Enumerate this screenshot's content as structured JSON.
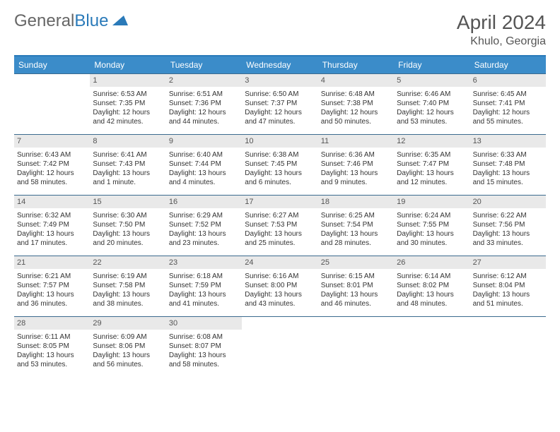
{
  "logo": {
    "textGray": "General",
    "textBlue": "Blue"
  },
  "title": "April 2024",
  "location": "Khulo, Georgia",
  "colors": {
    "headerBar": "#3b8cc9",
    "accent": "#2a7ab9",
    "rowBorder": "#3b6a8e",
    "daynumBg": "#e9e9e9",
    "text": "#333333",
    "muted": "#555555",
    "background": "#ffffff"
  },
  "layout": {
    "pageWidth": 792,
    "pageHeight": 612,
    "columns": 7,
    "dayhead_fontsize": 12,
    "cell_fontsize": 10,
    "title_fontsize": 28,
    "location_fontsize": 16
  },
  "weekdays": [
    "Sunday",
    "Monday",
    "Tuesday",
    "Wednesday",
    "Thursday",
    "Friday",
    "Saturday"
  ],
  "startOffset": 1,
  "days": [
    {
      "n": 1,
      "sunrise": "6:53 AM",
      "sunset": "7:35 PM",
      "daylight": "12 hours and 42 minutes."
    },
    {
      "n": 2,
      "sunrise": "6:51 AM",
      "sunset": "7:36 PM",
      "daylight": "12 hours and 44 minutes."
    },
    {
      "n": 3,
      "sunrise": "6:50 AM",
      "sunset": "7:37 PM",
      "daylight": "12 hours and 47 minutes."
    },
    {
      "n": 4,
      "sunrise": "6:48 AM",
      "sunset": "7:38 PM",
      "daylight": "12 hours and 50 minutes."
    },
    {
      "n": 5,
      "sunrise": "6:46 AM",
      "sunset": "7:40 PM",
      "daylight": "12 hours and 53 minutes."
    },
    {
      "n": 6,
      "sunrise": "6:45 AM",
      "sunset": "7:41 PM",
      "daylight": "12 hours and 55 minutes."
    },
    {
      "n": 7,
      "sunrise": "6:43 AM",
      "sunset": "7:42 PM",
      "daylight": "12 hours and 58 minutes."
    },
    {
      "n": 8,
      "sunrise": "6:41 AM",
      "sunset": "7:43 PM",
      "daylight": "13 hours and 1 minute."
    },
    {
      "n": 9,
      "sunrise": "6:40 AM",
      "sunset": "7:44 PM",
      "daylight": "13 hours and 4 minutes."
    },
    {
      "n": 10,
      "sunrise": "6:38 AM",
      "sunset": "7:45 PM",
      "daylight": "13 hours and 6 minutes."
    },
    {
      "n": 11,
      "sunrise": "6:36 AM",
      "sunset": "7:46 PM",
      "daylight": "13 hours and 9 minutes."
    },
    {
      "n": 12,
      "sunrise": "6:35 AM",
      "sunset": "7:47 PM",
      "daylight": "13 hours and 12 minutes."
    },
    {
      "n": 13,
      "sunrise": "6:33 AM",
      "sunset": "7:48 PM",
      "daylight": "13 hours and 15 minutes."
    },
    {
      "n": 14,
      "sunrise": "6:32 AM",
      "sunset": "7:49 PM",
      "daylight": "13 hours and 17 minutes."
    },
    {
      "n": 15,
      "sunrise": "6:30 AM",
      "sunset": "7:50 PM",
      "daylight": "13 hours and 20 minutes."
    },
    {
      "n": 16,
      "sunrise": "6:29 AM",
      "sunset": "7:52 PM",
      "daylight": "13 hours and 23 minutes."
    },
    {
      "n": 17,
      "sunrise": "6:27 AM",
      "sunset": "7:53 PM",
      "daylight": "13 hours and 25 minutes."
    },
    {
      "n": 18,
      "sunrise": "6:25 AM",
      "sunset": "7:54 PM",
      "daylight": "13 hours and 28 minutes."
    },
    {
      "n": 19,
      "sunrise": "6:24 AM",
      "sunset": "7:55 PM",
      "daylight": "13 hours and 30 minutes."
    },
    {
      "n": 20,
      "sunrise": "6:22 AM",
      "sunset": "7:56 PM",
      "daylight": "13 hours and 33 minutes."
    },
    {
      "n": 21,
      "sunrise": "6:21 AM",
      "sunset": "7:57 PM",
      "daylight": "13 hours and 36 minutes."
    },
    {
      "n": 22,
      "sunrise": "6:19 AM",
      "sunset": "7:58 PM",
      "daylight": "13 hours and 38 minutes."
    },
    {
      "n": 23,
      "sunrise": "6:18 AM",
      "sunset": "7:59 PM",
      "daylight": "13 hours and 41 minutes."
    },
    {
      "n": 24,
      "sunrise": "6:16 AM",
      "sunset": "8:00 PM",
      "daylight": "13 hours and 43 minutes."
    },
    {
      "n": 25,
      "sunrise": "6:15 AM",
      "sunset": "8:01 PM",
      "daylight": "13 hours and 46 minutes."
    },
    {
      "n": 26,
      "sunrise": "6:14 AM",
      "sunset": "8:02 PM",
      "daylight": "13 hours and 48 minutes."
    },
    {
      "n": 27,
      "sunrise": "6:12 AM",
      "sunset": "8:04 PM",
      "daylight": "13 hours and 51 minutes."
    },
    {
      "n": 28,
      "sunrise": "6:11 AM",
      "sunset": "8:05 PM",
      "daylight": "13 hours and 53 minutes."
    },
    {
      "n": 29,
      "sunrise": "6:09 AM",
      "sunset": "8:06 PM",
      "daylight": "13 hours and 56 minutes."
    },
    {
      "n": 30,
      "sunrise": "6:08 AM",
      "sunset": "8:07 PM",
      "daylight": "13 hours and 58 minutes."
    }
  ]
}
